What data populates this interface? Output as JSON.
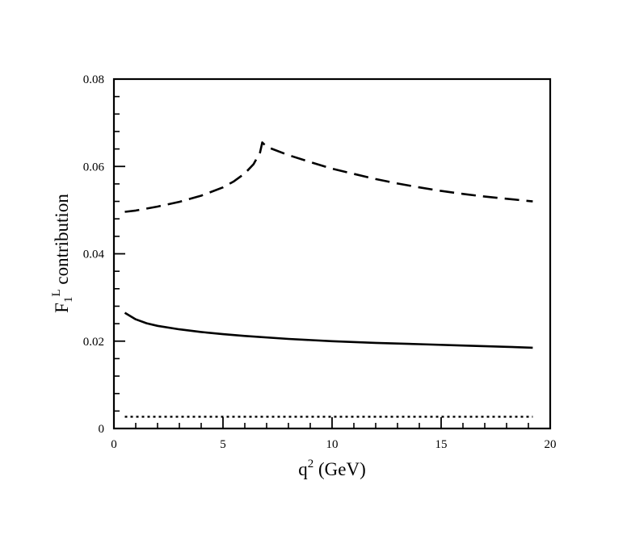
{
  "chart_data": {
    "type": "line",
    "title": "",
    "xlabel": {
      "base": "q",
      "sup": "2",
      "rest": " (GeV)"
    },
    "ylabel": {
      "base": "F",
      "sub": "1",
      "sup": "L",
      "rest": " contribution"
    },
    "xlim": [
      0,
      20
    ],
    "ylim": [
      0,
      0.08
    ],
    "x_ticks": [
      0,
      5,
      10,
      15,
      20
    ],
    "x_tick_labels": [
      "0",
      "5",
      "10",
      "15",
      "20"
    ],
    "y_ticks": [
      0,
      0.02,
      0.04,
      0.06,
      0.08
    ],
    "y_tick_labels": [
      "0",
      "0.02",
      "0.04",
      "0.06",
      "0.08"
    ],
    "grid": false,
    "legend": "none",
    "series": [
      {
        "style": "dashed",
        "color": "#000000",
        "x": [
          0.5,
          1,
          2,
          3,
          4,
          5,
          5.5,
          6,
          6.4,
          6.7,
          6.8,
          7,
          8,
          9,
          10,
          11,
          12,
          13,
          14,
          15,
          16,
          17,
          18,
          19.2
        ],
        "y": [
          0.0496,
          0.0499,
          0.0508,
          0.0519,
          0.0533,
          0.0552,
          0.0566,
          0.0584,
          0.0605,
          0.0632,
          0.0655,
          0.0645,
          0.0626,
          0.061,
          0.0595,
          0.0583,
          0.0571,
          0.0561,
          0.0552,
          0.0544,
          0.0537,
          0.0531,
          0.0526,
          0.052
        ]
      },
      {
        "style": "solid",
        "color": "#000000",
        "x": [
          0.5,
          1,
          1.5,
          2,
          3,
          4,
          5,
          6,
          8,
          10,
          12,
          14,
          16,
          18,
          19.2
        ],
        "y": [
          0.0265,
          0.025,
          0.0241,
          0.0235,
          0.0227,
          0.0221,
          0.0216,
          0.0212,
          0.0205,
          0.02,
          0.0196,
          0.0193,
          0.019,
          0.0187,
          0.0185
        ]
      },
      {
        "style": "dotted",
        "color": "#000000",
        "x": [
          0.5,
          19.2
        ],
        "y": [
          0.0027,
          0.0027
        ]
      }
    ]
  }
}
